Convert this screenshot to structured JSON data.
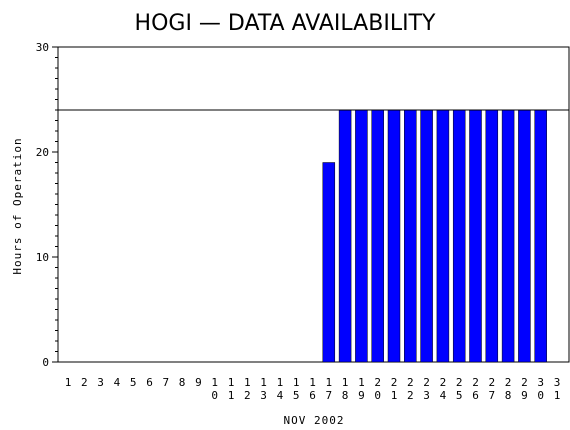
{
  "chart_data": {
    "type": "bar",
    "title": "HOGI — DATA AVAILABILITY",
    "xlabel": "NOV 2002",
    "ylabel": "Hours of Operation",
    "categories": [
      "1",
      "2",
      "3",
      "4",
      "5",
      "6",
      "7",
      "8",
      "9",
      "10",
      "11",
      "12",
      "13",
      "14",
      "15",
      "16",
      "17",
      "18",
      "19",
      "20",
      "21",
      "22",
      "23",
      "24",
      "25",
      "26",
      "27",
      "28",
      "29",
      "30",
      "31"
    ],
    "values": [
      0,
      0,
      0,
      0,
      0,
      0,
      0,
      0,
      0,
      0,
      0,
      0,
      0,
      0,
      0,
      0,
      19,
      24,
      24,
      24,
      24,
      24,
      24,
      24,
      24,
      24,
      24,
      24,
      24,
      24,
      null
    ],
    "ylim": [
      0,
      30
    ],
    "yticks": [
      0,
      10,
      20,
      30
    ],
    "reference_line": 24,
    "bar_color": "#0000ff",
    "grid": false
  }
}
